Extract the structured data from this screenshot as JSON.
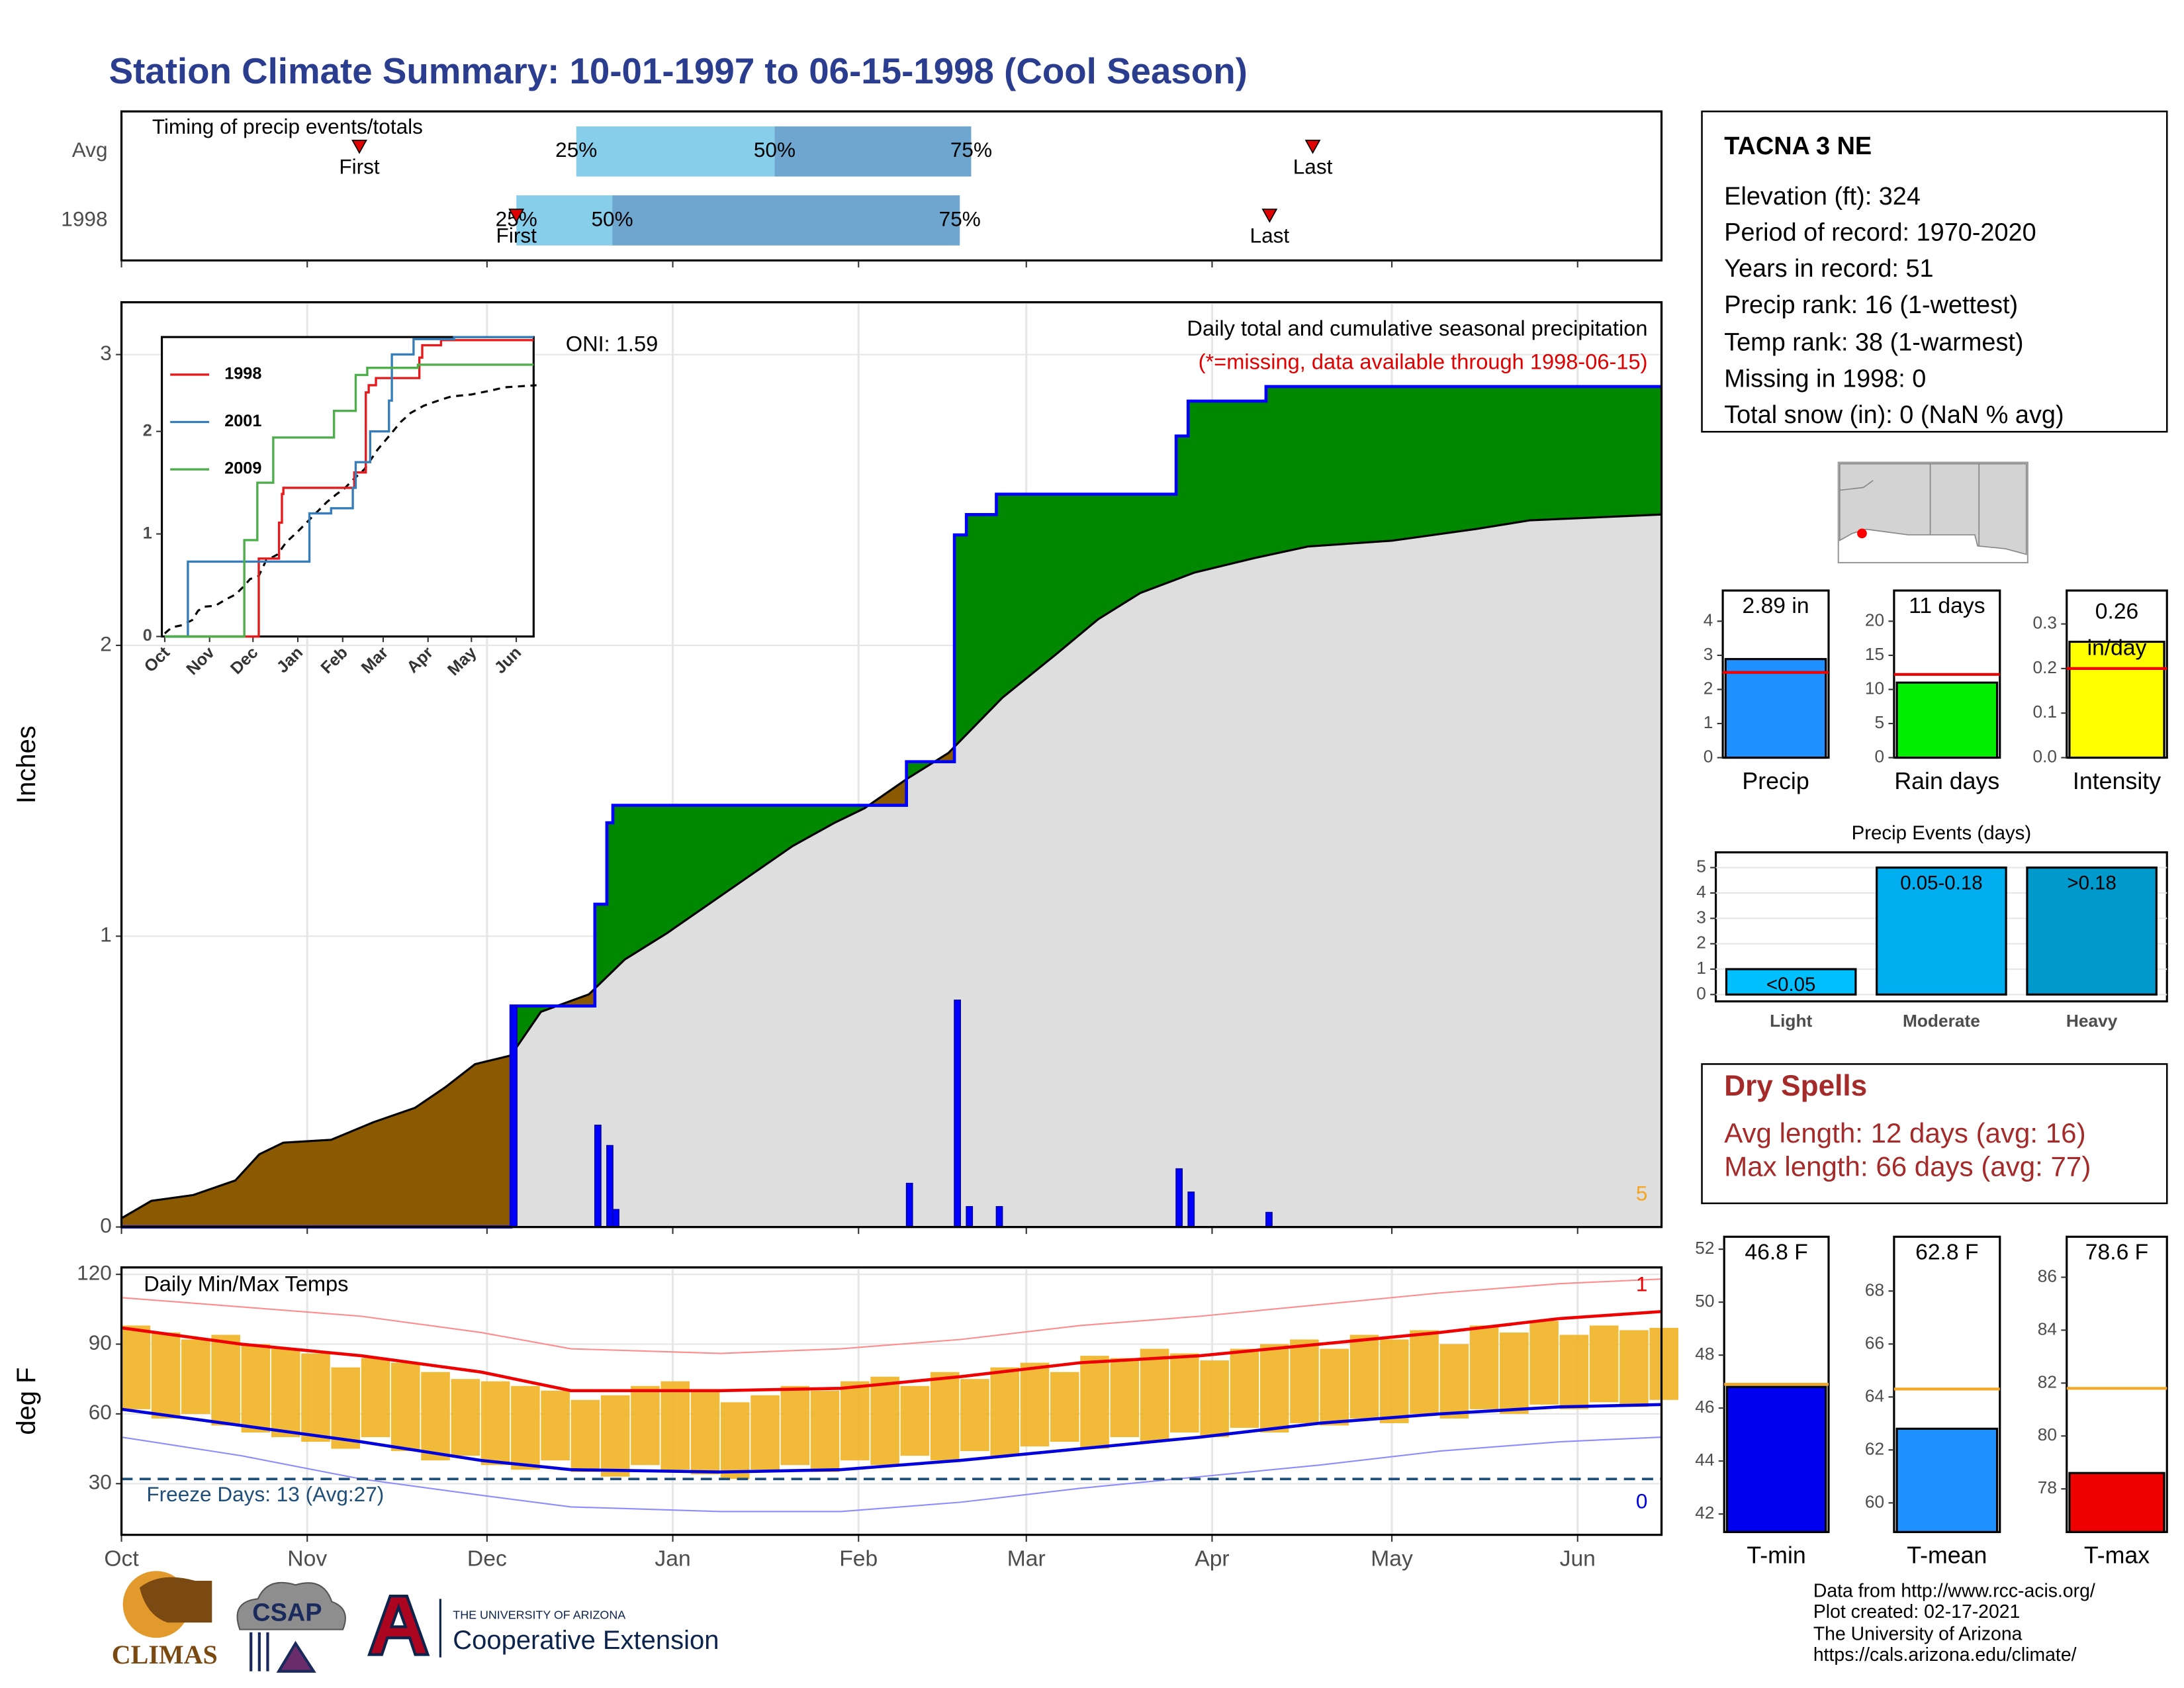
{
  "title": "Station Climate Summary: 10-01-1997 to 06-15-1998 (Cool Season)",
  "station": {
    "name": "TACNA 3 NE",
    "lines": [
      "Elevation (ft): 324",
      "Period of record: 1970-2020",
      "Years in record: 51",
      "Precip rank: 16 (1-wettest)",
      "Temp rank: 38 (1-warmest)",
      "Missing in 1998: 0",
      "Total snow (in): 0 (NaN % avg)"
    ]
  },
  "dry_spells": {
    "title": "Dry Spells",
    "lines": [
      "Avg length: 12 days (avg: 16)",
      "Max length: 66 days (avg: 77)"
    ]
  },
  "footer": [
    "Data from http://www.rcc-acis.org/",
    "Plot created: 02-17-2021",
    "The University of Arizona",
    "https://cals.arizona.edu/climate/"
  ],
  "logos": [
    "CLIMAS",
    "CSAP",
    "THE UNIVERSITY OF ARIZONA",
    "Cooperative Extension"
  ],
  "chart_data": [
    {
      "type": "timing",
      "title": "Timing of precip events/totals",
      "categories": [
        "Avg",
        "1998"
      ],
      "q25": [
        75.9,
        65.9
      ],
      "q50": [
        109,
        81.9
      ],
      "q75": [
        141.8,
        139.9
      ],
      "first": [
        39.7,
        65.9
      ],
      "last": [
        198.8,
        191.6
      ],
      "q_labels": [
        "25%",
        "50%",
        "75%"
      ],
      "first_label": "First",
      "last_label": "Last",
      "light_color": "#87ceeb",
      "dark_color": "#6fa6cf",
      "marker_color": "#e00000",
      "xlim": [
        0,
        257
      ],
      "xticks": [
        0,
        31,
        61,
        92,
        123,
        151,
        182,
        212,
        243
      ]
    },
    {
      "type": "cumulative",
      "title": "Daily total and cumulative seasonal precipitation",
      "subtitle": "(*=missing, data available through 1998-06-15)",
      "annotation": "ONI: 1.59",
      "corner_label": "5",
      "y_label": "Inches",
      "xlim": [
        0,
        257
      ],
      "xticks": [
        0,
        31,
        61,
        92,
        123,
        151,
        182,
        212,
        243
      ],
      "ylim": [
        0,
        3.18
      ],
      "yticks": [
        0,
        1,
        2,
        3
      ],
      "grid": true,
      "avg_cumulative": {
        "x": [
          0,
          5,
          12,
          19,
          23,
          27,
          35,
          42,
          49,
          54,
          59,
          65,
          70,
          78,
          84,
          91,
          98,
          105,
          112,
          119,
          124,
          131,
          138,
          147,
          156,
          163,
          170,
          179,
          189,
          198,
          212,
          226,
          235,
          257
        ],
        "values": [
          0.03,
          0.09,
          0.11,
          0.16,
          0.25,
          0.29,
          0.3,
          0.36,
          0.41,
          0.48,
          0.56,
          0.59,
          0.74,
          0.8,
          0.92,
          1.01,
          1.11,
          1.21,
          1.31,
          1.39,
          1.44,
          1.54,
          1.63,
          1.82,
          1.97,
          2.09,
          2.18,
          2.25,
          2.3,
          2.34,
          2.36,
          2.4,
          2.43,
          2.45
        ]
      },
      "cumulative_1998": {
        "x": [
          0,
          65,
          79,
          81,
          82,
          131,
          139,
          141,
          146,
          176,
          178,
          191,
          257
        ],
        "values": [
          0,
          0.76,
          1.11,
          1.39,
          1.45,
          1.6,
          2.38,
          2.45,
          2.52,
          2.72,
          2.84,
          2.89,
          2.89
        ]
      },
      "daily": {
        "x": [
          65,
          79,
          81,
          82,
          131,
          139,
          141,
          146,
          176,
          178,
          191
        ],
        "values": [
          0.76,
          0.35,
          0.28,
          0.06,
          0.15,
          0.78,
          0.07,
          0.07,
          0.2,
          0.12,
          0.05
        ]
      },
      "avg_color": "#dedede",
      "above_color": "#008800",
      "below_color": "#8b5a00",
      "line_color": "#0000ff",
      "subtitle_color": "#e00000",
      "corner_color": "#f5a623"
    },
    {
      "type": "step_line",
      "xlim": [
        -2,
        255
      ],
      "xticks": [
        {
          "value": 0,
          "label": "Oct"
        },
        {
          "value": 31,
          "label": "Nov"
        },
        {
          "value": 61,
          "label": "Dec"
        },
        {
          "value": 92,
          "label": "Jan"
        },
        {
          "value": 123,
          "label": "Feb"
        },
        {
          "value": 151,
          "label": "Mar"
        },
        {
          "value": 182,
          "label": "Apr"
        },
        {
          "value": 212,
          "label": "May"
        },
        {
          "value": 243,
          "label": "Jun"
        }
      ],
      "ylim": [
        0,
        2.92
      ],
      "yticks": [
        0,
        1,
        2
      ],
      "series": [
        {
          "name": "1998",
          "color": "#e41a1c",
          "x": [
            0,
            65,
            79,
            81,
            82,
            131,
            139,
            141,
            146,
            176,
            178,
            191,
            255
          ],
          "values": [
            0,
            0.76,
            1.11,
            1.39,
            1.45,
            1.6,
            2.38,
            2.45,
            2.52,
            2.72,
            2.84,
            2.89,
            2.89
          ]
        },
        {
          "name": "2001",
          "color": "#377eb8",
          "x": [
            0,
            16,
            100,
            115,
            130,
            132,
            142,
            155,
            157,
            172,
            200,
            255
          ],
          "values": [
            0,
            0.73,
            1.2,
            1.25,
            1.45,
            1.7,
            2.0,
            2.3,
            2.75,
            2.9,
            2.92,
            2.92
          ]
        },
        {
          "name": "2009",
          "color": "#4daf4a",
          "x": [
            0,
            55,
            64,
            75,
            117,
            132,
            140,
            175,
            255
          ],
          "values": [
            0,
            0.94,
            1.5,
            1.94,
            2.2,
            2.55,
            2.62,
            2.65,
            2.65
          ]
        }
      ]
    },
    {
      "type": "min_max",
      "title": "Daily Min/Max Temps",
      "annotation": "Freeze Days: 13 (Avg:27)",
      "y_label": "deg F",
      "record_high_count": 1,
      "record_low_count": 0,
      "freeze_line": 32,
      "xlim": [
        0,
        257
      ],
      "xticks": [
        {
          "value": 0,
          "label": "Oct"
        },
        {
          "value": 31,
          "label": "Nov"
        },
        {
          "value": 61,
          "label": "Dec"
        },
        {
          "value": 92,
          "label": "Jan"
        },
        {
          "value": 123,
          "label": "Feb"
        },
        {
          "value": 151,
          "label": "Mar"
        },
        {
          "value": 182,
          "label": "Apr"
        },
        {
          "value": 212,
          "label": "May"
        },
        {
          "value": 243,
          "label": "Jun"
        }
      ],
      "ylim": [
        8,
        123
      ],
      "yticks": [
        30,
        60,
        90,
        120
      ],
      "grid": true,
      "x": [
        0,
        5,
        10,
        15,
        20,
        25,
        30,
        35,
        40,
        45,
        50,
        55,
        60,
        65,
        70,
        75,
        80,
        85,
        90,
        95,
        100,
        105,
        110,
        115,
        120,
        125,
        130,
        135,
        140,
        145,
        150,
        155,
        160,
        165,
        170,
        175,
        180,
        185,
        190,
        195,
        200,
        205,
        210,
        215,
        220,
        225,
        230,
        235,
        240,
        245,
        250,
        255
      ],
      "max_values": [
        98,
        95,
        92,
        94,
        90,
        88,
        86,
        80,
        84,
        82,
        78,
        75,
        74,
        72,
        70,
        66,
        68,
        72,
        74,
        70,
        65,
        68,
        72,
        70,
        74,
        76,
        72,
        78,
        75,
        80,
        82,
        78,
        85,
        84,
        88,
        86,
        83,
        88,
        90,
        92,
        88,
        94,
        92,
        96,
        90,
        98,
        95,
        100,
        94,
        98,
        96,
        97
      ],
      "min_values": [
        62,
        58,
        60,
        55,
        52,
        50,
        48,
        45,
        50,
        44,
        40,
        42,
        38,
        36,
        40,
        35,
        33,
        38,
        36,
        34,
        32,
        36,
        38,
        35,
        40,
        38,
        42,
        40,
        44,
        42,
        46,
        48,
        45,
        50,
        48,
        52,
        50,
        54,
        52,
        56,
        55,
        58,
        56,
        60,
        58,
        62,
        60,
        64,
        62,
        65,
        63,
        66
      ],
      "line_x": [
        0,
        20,
        40,
        60,
        75,
        100,
        120,
        140,
        160,
        180,
        200,
        220,
        240,
        257
      ],
      "avg_max": [
        97,
        90,
        85,
        78,
        70,
        70,
        71,
        76,
        82,
        85,
        90,
        95,
        101,
        104
      ],
      "avg_min": [
        62,
        55,
        48,
        40,
        36,
        35,
        36,
        40,
        45,
        50,
        56,
        60,
        63,
        64
      ],
      "record_max": [
        110,
        106,
        102,
        95,
        88,
        86,
        88,
        92,
        98,
        102,
        107,
        112,
        116,
        118
      ],
      "record_min": [
        50,
        42,
        32,
        25,
        20,
        18,
        18,
        22,
        28,
        33,
        38,
        44,
        48,
        50
      ],
      "bar_color": "#f0b323",
      "max_color": "#ee0000",
      "min_color": "#0000dd",
      "record_max_color": "#ff8c8c",
      "record_min_color": "#8c8cff",
      "freeze_color": "#1f4e79"
    },
    {
      "type": "single_bar",
      "categories": [
        "Precip"
      ],
      "values": [
        2.89
      ],
      "value_labels": [
        "2.89 in"
      ],
      "average": 2.5,
      "color": "#1e90ff",
      "avg_color": "#ee0000",
      "ylim": [
        0,
        4.9
      ],
      "yticks": [
        0,
        1,
        2,
        3,
        4
      ]
    },
    {
      "type": "single_bar",
      "categories": [
        "Rain days"
      ],
      "values": [
        11
      ],
      "value_labels": [
        "11 days"
      ],
      "average": 12.2,
      "color": "#00ee00",
      "avg_color": "#ee0000",
      "ylim": [
        0,
        24.5
      ],
      "yticks": [
        0,
        5,
        10,
        15,
        20
      ]
    },
    {
      "type": "single_bar",
      "categories": [
        "Intensity"
      ],
      "values": [
        0.26
      ],
      "value_labels": [
        "0.26"
      ],
      "unit": "in/day",
      "average": 0.2,
      "color": "#ffff00",
      "avg_color": "#ee0000",
      "ylim": [
        0,
        0.375
      ],
      "yticks": [
        {
          "value": 0,
          "label": "0.0"
        },
        0.1,
        0.2,
        0.3
      ]
    },
    {
      "type": "bar",
      "title": "Precip Events (days)",
      "categories": [
        "Light",
        "Moderate",
        "Heavy"
      ],
      "values": [
        1,
        5,
        5
      ],
      "bin_labels": [
        "<0.05",
        "0.05-0.18",
        ">0.18"
      ],
      "colors": [
        "#00bfff",
        "#00aeef",
        "#0099cc"
      ],
      "ylim": [
        -0.27,
        5.6
      ],
      "yticks": [
        0,
        1,
        2,
        3,
        4,
        5
      ],
      "grid": true
    },
    {
      "type": "single_bar",
      "categories": [
        "T-min"
      ],
      "values": [
        46.8
      ],
      "value_labels": [
        "46.8 F"
      ],
      "average": 46.9,
      "color": "#0000ee",
      "avg_color": "#f5a623",
      "ylim": [
        41.32,
        52.47
      ],
      "yticks": [
        42,
        44,
        46,
        48,
        50,
        52
      ]
    },
    {
      "type": "single_bar",
      "categories": [
        "T-mean"
      ],
      "values": [
        62.8
      ],
      "value_labels": [
        "62.8 F"
      ],
      "average": 64.3,
      "color": "#1e90ff",
      "avg_color": "#f5a623",
      "ylim": [
        58.9,
        70.05
      ],
      "yticks": [
        60,
        62,
        64,
        66,
        68
      ]
    },
    {
      "type": "single_bar",
      "categories": [
        "T-max"
      ],
      "values": [
        78.6
      ],
      "value_labels": [
        "78.6 F"
      ],
      "average": 81.8,
      "color": "#ee0000",
      "avg_color": "#f5a623",
      "ylim": [
        76.37,
        87.53
      ],
      "yticks": [
        78,
        80,
        82,
        84,
        86
      ]
    }
  ]
}
